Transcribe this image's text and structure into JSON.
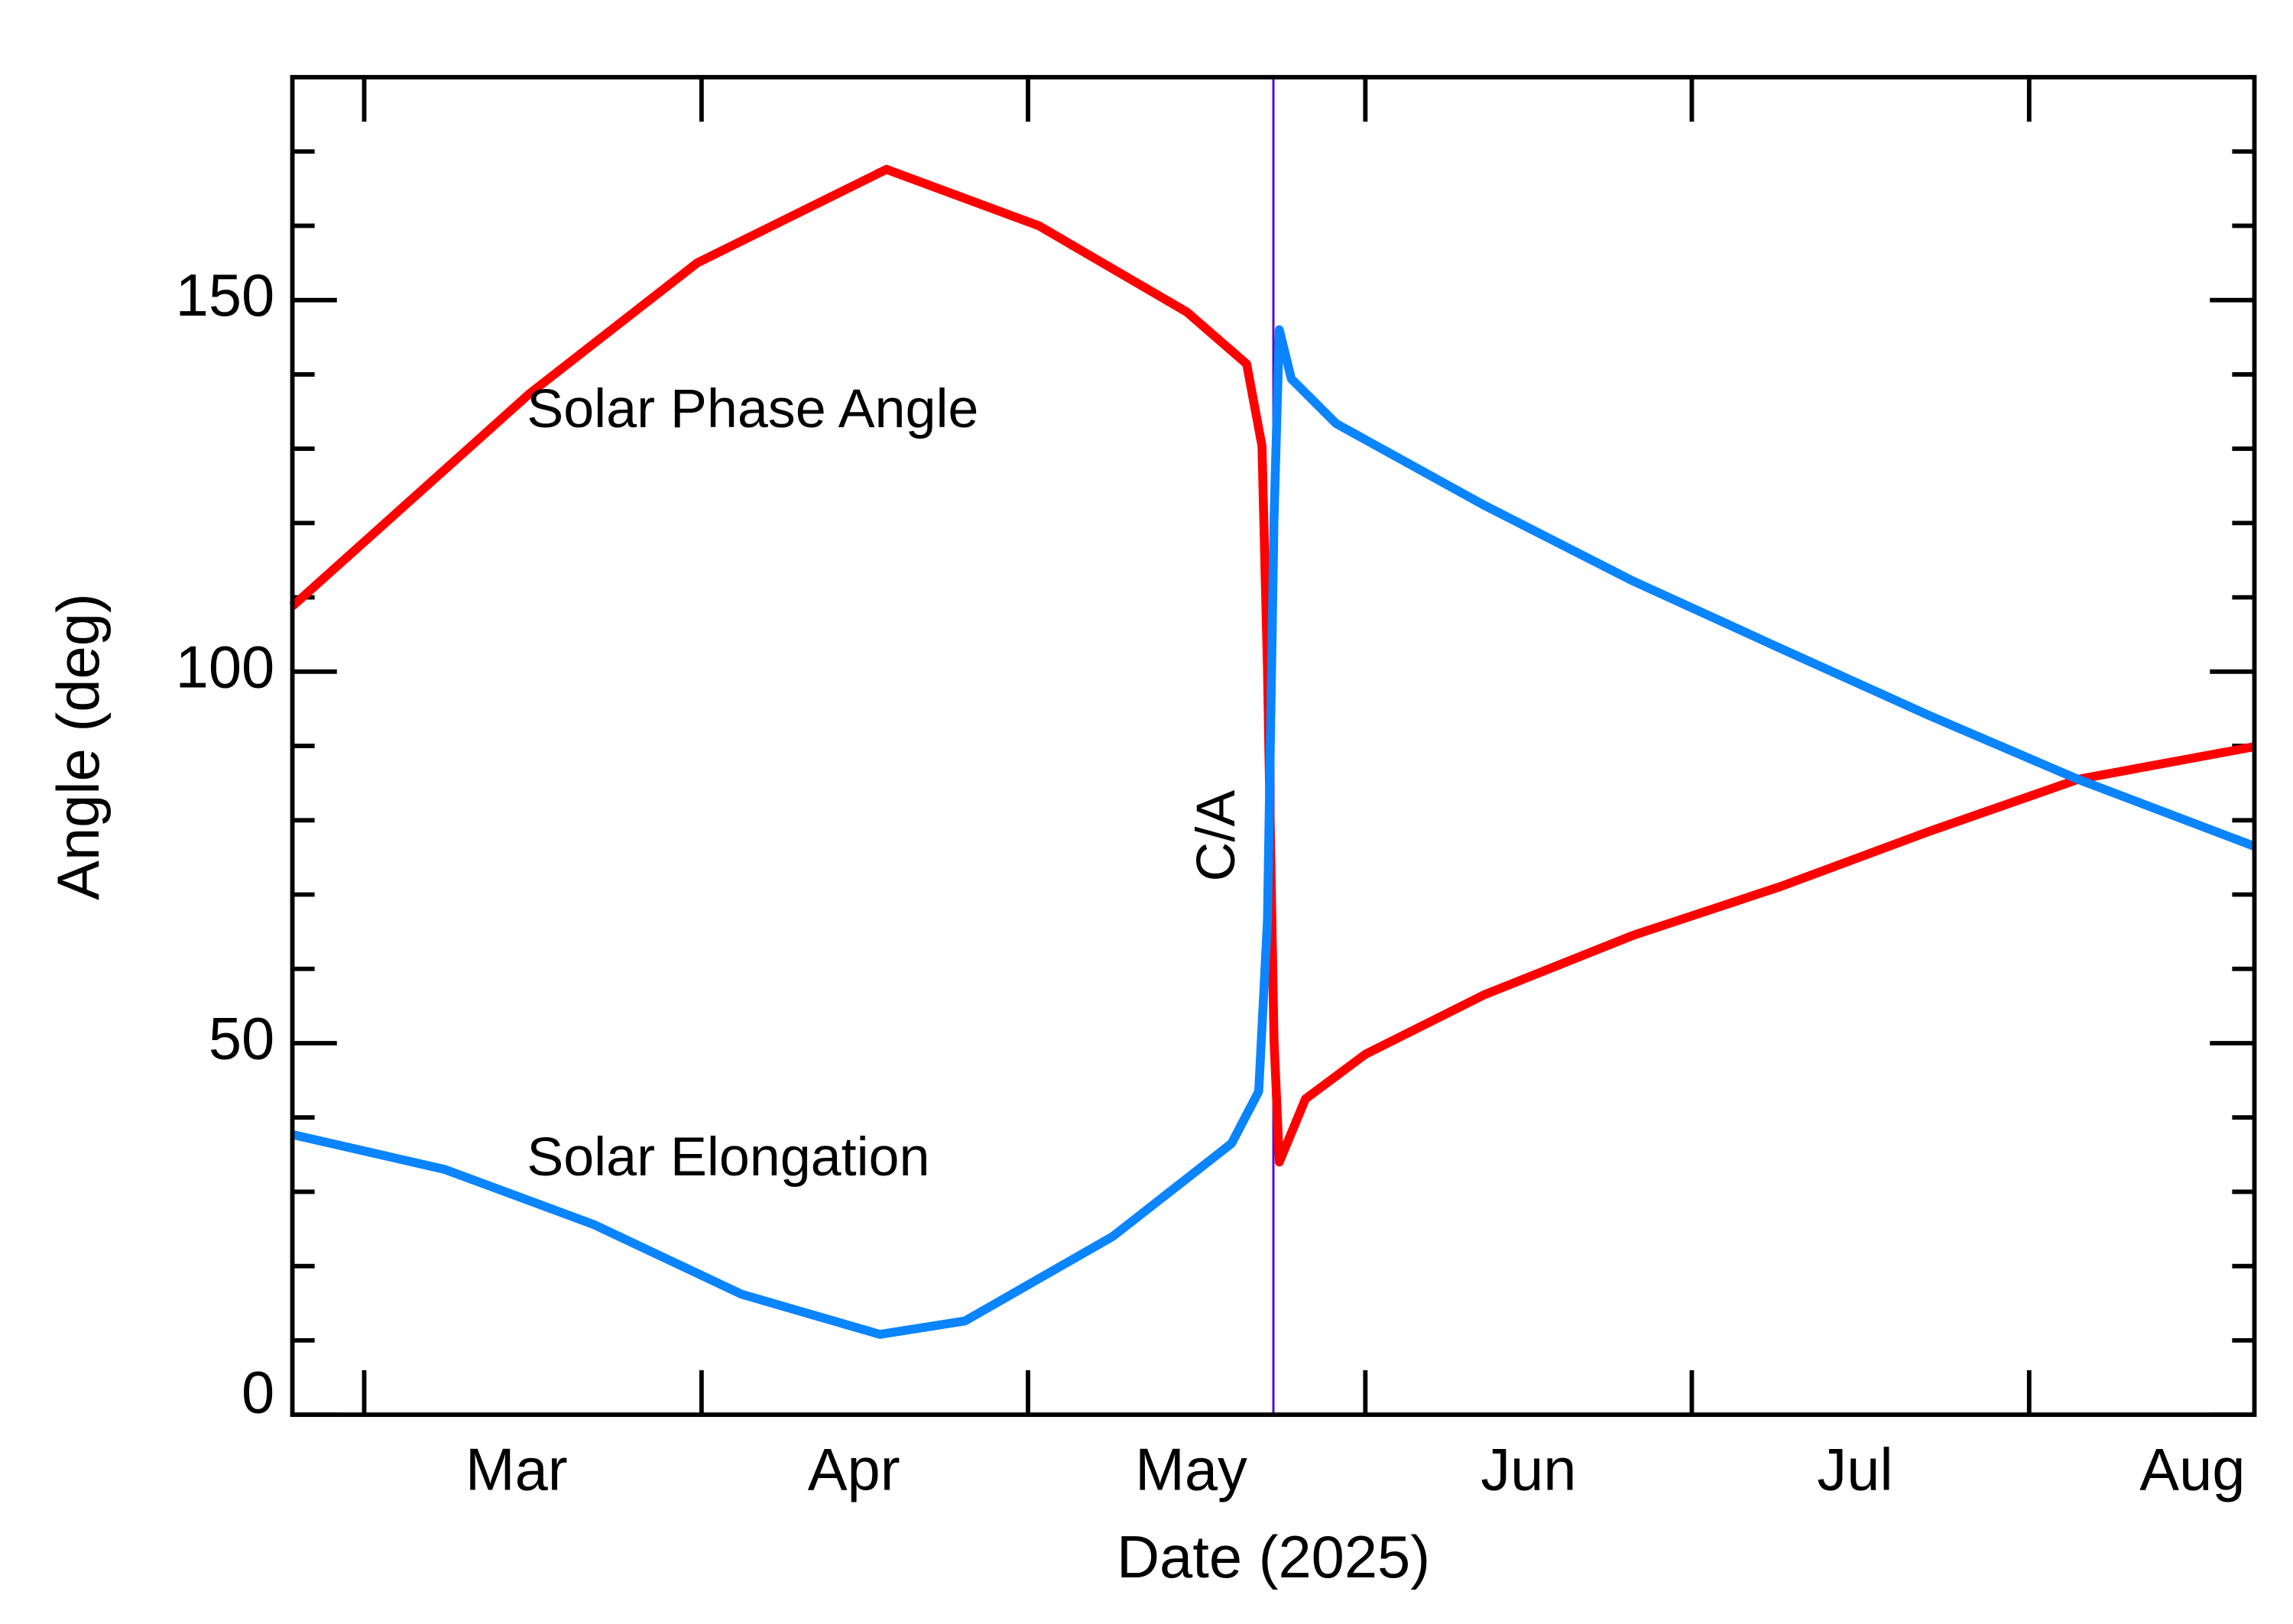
{
  "chart_data": {
    "type": "line",
    "xlabel": "Date (2025)",
    "ylabel": "Angle (deg)",
    "xlim": [
      53.4,
      233.7
    ],
    "ylim": [
      0,
      180
    ],
    "yticks": [
      0,
      50,
      100,
      150
    ],
    "y_minor_ticks": [
      10,
      20,
      30,
      40,
      60,
      70,
      80,
      90,
      110,
      120,
      130,
      140,
      160,
      170
    ],
    "x_month_starts": [
      60,
      91,
      121,
      152,
      182,
      213
    ],
    "xticks": [
      {
        "value": 74,
        "label": "Mar"
      },
      {
        "value": 105,
        "label": "Apr"
      },
      {
        "value": 136,
        "label": "May"
      },
      {
        "value": 167,
        "label": "Jun"
      },
      {
        "value": 197,
        "label": "Jul"
      },
      {
        "value": 228,
        "label": "Aug"
      }
    ],
    "closest_approach": {
      "x": 143.55,
      "label": "C/A",
      "color": "#5500cc"
    },
    "series": [
      {
        "name": "Solar Phase Angle",
        "color": "#ff0000",
        "x": [
          53.4,
          75.2,
          90.6,
          108,
          122,
          135.6,
          141.1,
          142.5,
          143,
          143.6,
          144.1,
          146.5,
          152,
          162.9,
          176.6,
          190.2,
          203.8,
          217.5,
          233.7
        ],
        "values": [
          108.8,
          137.4,
          155,
          167.6,
          160,
          148.4,
          141.4,
          130.4,
          100.5,
          50.5,
          34,
          42.5,
          48.5,
          56.5,
          64.5,
          71.1,
          78.5,
          85.5,
          89.9
        ]
      },
      {
        "name": "Solar Elongation",
        "color": "#0a84ff",
        "x": [
          53.4,
          67.4,
          81.1,
          94.7,
          107.4,
          115.2,
          128.8,
          139.7,
          142.2,
          143,
          143.6,
          144.1,
          145.2,
          149.3,
          162.9,
          176.6,
          190.2,
          203.8,
          217.5,
          233.7
        ],
        "values": [
          37.7,
          33,
          25.6,
          16.2,
          10.8,
          12.6,
          24,
          36.5,
          43.5,
          66.5,
          120.4,
          146,
          139.4,
          133.4,
          122.4,
          112.2,
          103.1,
          94.1,
          85.5,
          76.5
        ]
      }
    ]
  }
}
